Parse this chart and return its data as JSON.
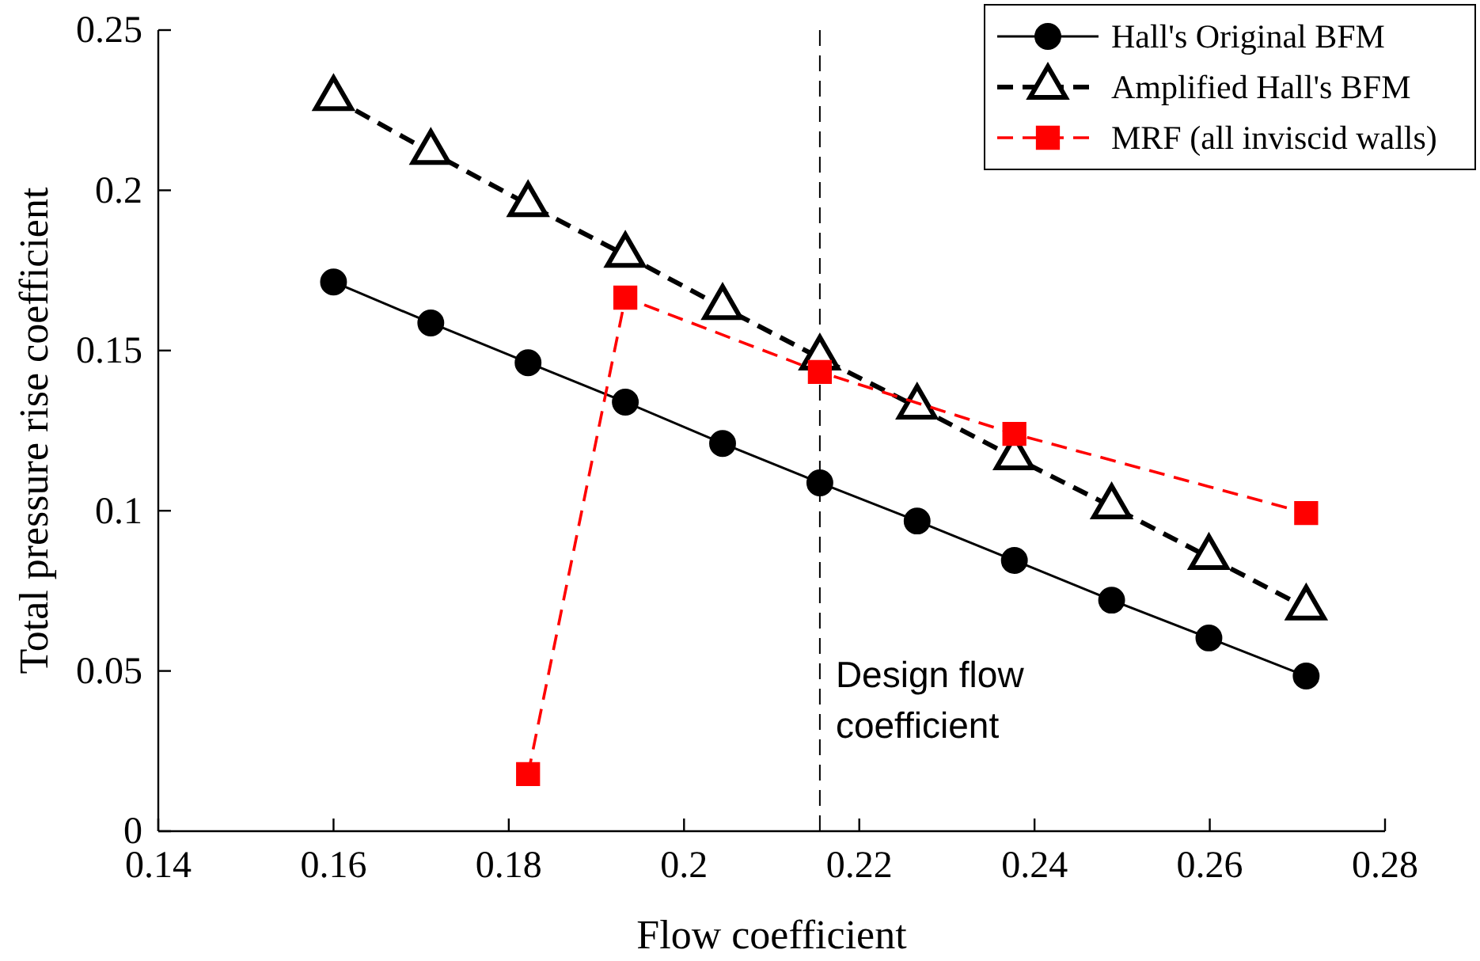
{
  "chart_data": {
    "type": "line",
    "xlabel": "Flow coefficient",
    "ylabel": "Total pressure rise coefficient",
    "xlim": [
      0.14,
      0.28
    ],
    "xticks": [
      0.14,
      0.16,
      0.18,
      0.2,
      0.22,
      0.24,
      0.26,
      0.28
    ],
    "ylim": [
      0,
      0.25
    ],
    "yticks": [
      0,
      0.05,
      0.1,
      0.15,
      0.2,
      0.25
    ],
    "grid": false,
    "legend": "top right",
    "series": [
      {
        "name": "Hall's Original BFM",
        "color": "#000000",
        "marker": "circle",
        "line_style": "solid",
        "x": [
          0.16,
          0.1711,
          0.1822,
          0.1933,
          0.2044,
          0.2155,
          0.2266,
          0.2377,
          0.2488,
          0.2599,
          0.271
        ],
        "values": [
          0.1714,
          0.1586,
          0.1462,
          0.1339,
          0.121,
          0.1087,
          0.0968,
          0.0845,
          0.0721,
          0.0603,
          0.0484
        ]
      },
      {
        "name": "Amplified Hall's BFM",
        "color": "#000000",
        "marker": "triangle",
        "line_style": "dashed",
        "x": [
          0.16,
          0.1711,
          0.1822,
          0.1933,
          0.2044,
          0.2155,
          0.2266,
          0.2377,
          0.2488,
          0.2599,
          0.271
        ],
        "values": [
          0.2287,
          0.2119,
          0.1956,
          0.1798,
          0.1635,
          0.1477,
          0.1324,
          0.1166,
          0.1013,
          0.0855,
          0.0697
        ]
      },
      {
        "name": "MRF (all inviscid walls)",
        "color": "#ff0000",
        "marker": "square",
        "line_style": "dashed",
        "x": [
          0.1822,
          0.1933,
          0.2155,
          0.2377,
          0.271
        ],
        "values": [
          0.0178,
          0.1665,
          0.1433,
          0.124,
          0.0993
        ]
      }
    ],
    "ref_lines": [
      {
        "axis": "x",
        "value": 0.2155,
        "label": "Design flow coefficient",
        "color": "#000000",
        "line_style": "dashed"
      }
    ]
  }
}
